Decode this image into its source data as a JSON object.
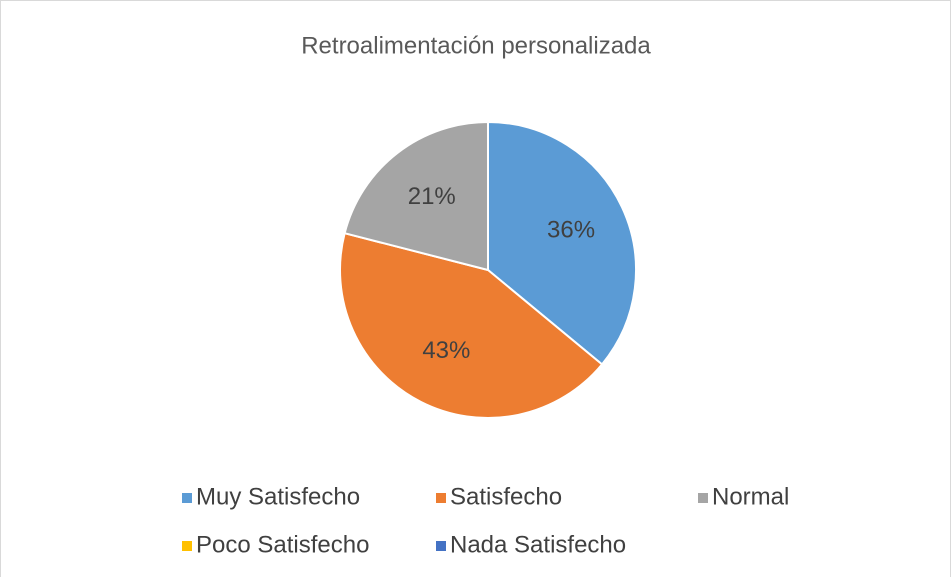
{
  "chart_data": {
    "type": "pie",
    "title": "Retroalimentación personalizada",
    "categories": [
      "Muy Satisfecho",
      "Satisfecho",
      "Normal",
      "Poco Satisfecho",
      "Nada Satisfecho"
    ],
    "values": [
      36,
      43,
      21,
      0,
      0
    ],
    "value_labels": [
      "36%",
      "43%",
      "21%",
      null,
      null
    ],
    "colors": [
      "#5b9bd5",
      "#ed7d31",
      "#a5a5a5",
      "#ffc000",
      "#4472c4"
    ],
    "legend": "bottom"
  }
}
